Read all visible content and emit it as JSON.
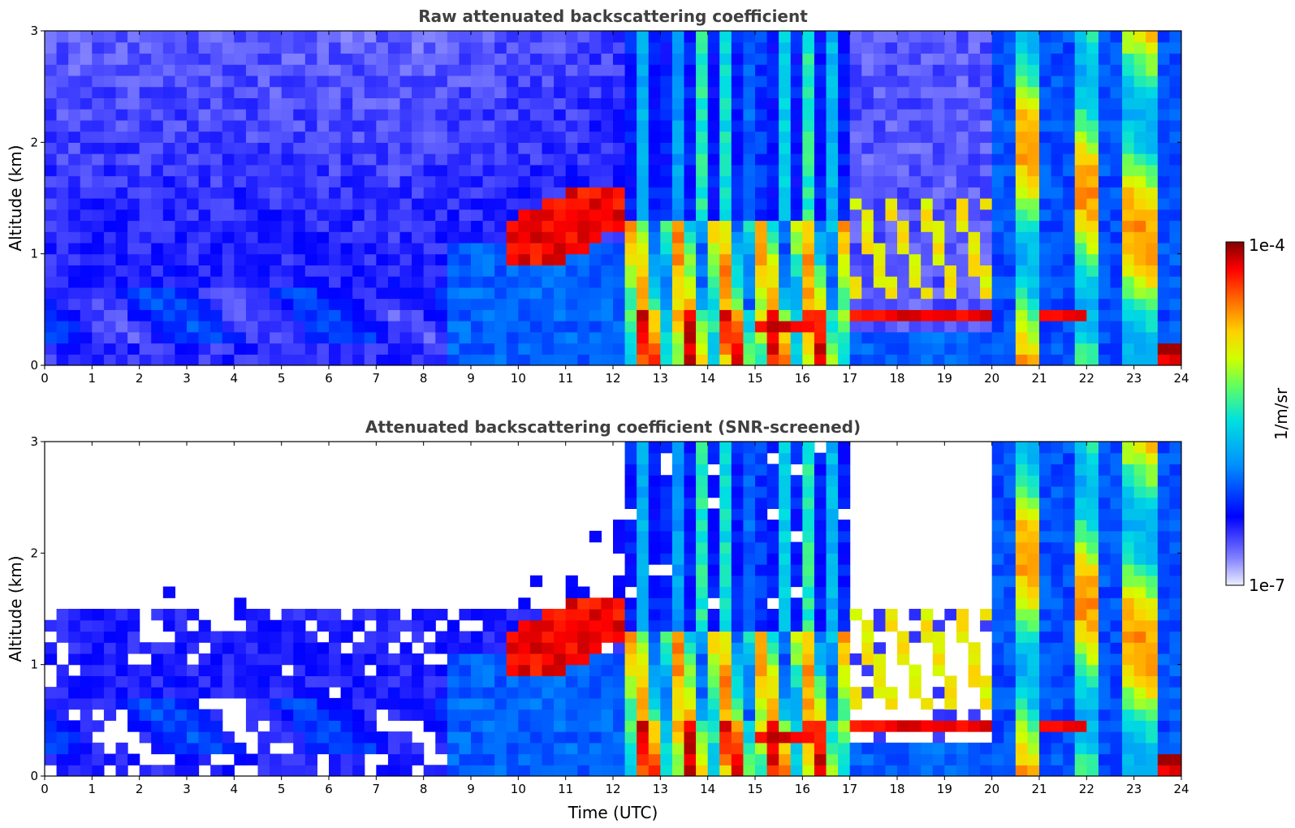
{
  "chart_data": [
    {
      "type": "heatmap",
      "title": "Raw attenuated backscattering coefficient",
      "xlabel": "",
      "ylabel": "Altitude (km)",
      "xlim": [
        0,
        24
      ],
      "ylim": [
        0,
        3
      ],
      "x_ticks": [
        "0",
        "1",
        "2",
        "3",
        "4",
        "5",
        "6",
        "7",
        "8",
        "9",
        "10",
        "11",
        "12",
        "13",
        "14",
        "15",
        "16",
        "17",
        "18",
        "19",
        "20",
        "21",
        "22",
        "23",
        "24"
      ],
      "y_ticks": [
        "0",
        "1",
        "2",
        "3"
      ],
      "screened": false
    },
    {
      "type": "heatmap",
      "title": "Attenuated backscattering coefficient (SNR-screened)",
      "xlabel": "Time (UTC)",
      "ylabel": "Altitude (km)",
      "xlim": [
        0,
        24
      ],
      "ylim": [
        0,
        3
      ],
      "x_ticks": [
        "0",
        "1",
        "2",
        "3",
        "4",
        "5",
        "6",
        "7",
        "8",
        "9",
        "10",
        "11",
        "12",
        "13",
        "14",
        "15",
        "16",
        "17",
        "18",
        "19",
        "20",
        "21",
        "22",
        "23",
        "24"
      ],
      "y_ticks": [
        "0",
        "1",
        "2",
        "3"
      ],
      "screened": true
    }
  ],
  "colorbar": {
    "label": "1/m/sr",
    "max_label": "1e-4",
    "min_label": "1e-7",
    "scale": "log",
    "range": [
      1e-07,
      0.0001
    ],
    "colormap": [
      "#e8e8f8",
      "#8080ff",
      "#0000ff",
      "#0080ff",
      "#00e0e0",
      "#40ff80",
      "#c0ff00",
      "#ffe000",
      "#ff8000",
      "#ff0000",
      "#800000"
    ]
  }
}
